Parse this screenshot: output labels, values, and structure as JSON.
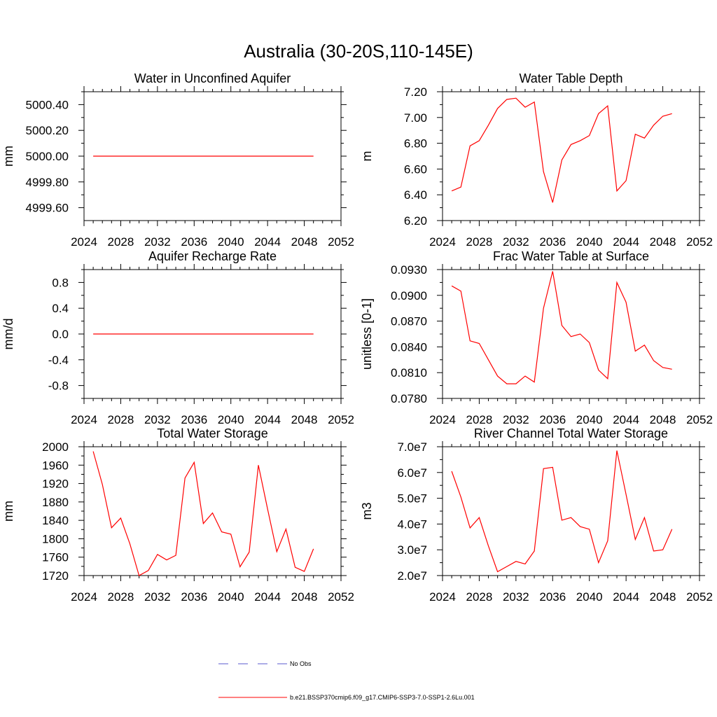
{
  "figure": {
    "title": "Australia (30-20S,110-145E)"
  },
  "legend": {
    "obs_label": "No Obs",
    "obs_color": "#5a5acf",
    "model_label": "b.e21.BSSP370cmip6.f09_g17.CMIP6-SSP3-7.0-SSP1-2.6Lu.001",
    "model_color": "#ff0000"
  },
  "chart_data": [
    {
      "type": "line",
      "title": "Water in Unconfined Aquifer",
      "ylabel": "mm",
      "xlim": [
        2024,
        2052
      ],
      "ylim": [
        4999.5,
        5000.5
      ],
      "xticks": [
        "2024",
        "2028",
        "2032",
        "2036",
        "2040",
        "2044",
        "2048",
        "2052"
      ],
      "yticks": [
        4999.6,
        4999.8,
        5000.0,
        5000.2,
        5000.4
      ],
      "ytick_labels": [
        "4999.60",
        "4999.80",
        "5000.00",
        "5000.20",
        "5000.40"
      ],
      "x": [
        2025,
        2026,
        2027,
        2028,
        2029,
        2030,
        2031,
        2032,
        2033,
        2034,
        2035,
        2036,
        2037,
        2038,
        2039,
        2040,
        2041,
        2042,
        2043,
        2044,
        2045,
        2046,
        2047,
        2048,
        2049
      ],
      "series": [
        {
          "values": [
            5000,
            5000,
            5000,
            5000,
            5000,
            5000,
            5000,
            5000,
            5000,
            5000,
            5000,
            5000,
            5000,
            5000,
            5000,
            5000,
            5000,
            5000,
            5000,
            5000,
            5000,
            5000,
            5000,
            5000,
            5000
          ],
          "color": "#ff0000"
        }
      ]
    },
    {
      "type": "line",
      "title": "Water Table Depth",
      "ylabel": "m",
      "xlim": [
        2024,
        2052
      ],
      "ylim": [
        6.2,
        7.2
      ],
      "xticks": [
        "2024",
        "2028",
        "2032",
        "2036",
        "2040",
        "2044",
        "2048",
        "2052"
      ],
      "yticks": [
        6.2,
        6.4,
        6.6,
        6.8,
        7.0,
        7.2
      ],
      "ytick_labels": [
        "6.20",
        "6.40",
        "6.60",
        "6.80",
        "7.00",
        "7.20"
      ],
      "x": [
        2025,
        2026,
        2027,
        2028,
        2029,
        2030,
        2031,
        2032,
        2033,
        2034,
        2035,
        2036,
        2037,
        2038,
        2039,
        2040,
        2041,
        2042,
        2043,
        2044,
        2045,
        2046,
        2047,
        2048,
        2049
      ],
      "series": [
        {
          "values": [
            6.43,
            6.46,
            6.78,
            6.82,
            6.94,
            7.07,
            7.14,
            7.15,
            7.08,
            7.12,
            6.58,
            6.34,
            6.67,
            6.79,
            6.82,
            6.86,
            7.03,
            7.09,
            6.43,
            6.51,
            6.87,
            6.84,
            6.94,
            7.01,
            7.03
          ],
          "color": "#ff0000"
        }
      ]
    },
    {
      "type": "line",
      "title": "Aquifer Recharge Rate",
      "ylabel": "mm/d",
      "xlim": [
        2024,
        2052
      ],
      "ylim": [
        -1.0,
        1.0
      ],
      "xticks": [
        "2024",
        "2028",
        "2032",
        "2036",
        "2040",
        "2044",
        "2048",
        "2052"
      ],
      "yticks": [
        -0.8,
        -0.4,
        0.0,
        0.4,
        0.8
      ],
      "ytick_labels": [
        "-0.8",
        "-0.4",
        "0.0",
        "0.4",
        "0.8"
      ],
      "x": [
        2025,
        2026,
        2027,
        2028,
        2029,
        2030,
        2031,
        2032,
        2033,
        2034,
        2035,
        2036,
        2037,
        2038,
        2039,
        2040,
        2041,
        2042,
        2043,
        2044,
        2045,
        2046,
        2047,
        2048,
        2049
      ],
      "series": [
        {
          "values": [
            0,
            0,
            0,
            0,
            0,
            0,
            0,
            0,
            0,
            0,
            0,
            0,
            0,
            0,
            0,
            0,
            0,
            0,
            0,
            0,
            0,
            0,
            0,
            0,
            0
          ],
          "color": "#ff0000"
        }
      ]
    },
    {
      "type": "line",
      "title": "Frac Water Table at Surface",
      "ylabel": "unitless [0-1]",
      "xlim": [
        2024,
        2052
      ],
      "ylim": [
        0.078,
        0.093
      ],
      "xticks": [
        "2024",
        "2028",
        "2032",
        "2036",
        "2040",
        "2044",
        "2048",
        "2052"
      ],
      "yticks": [
        0.078,
        0.081,
        0.084,
        0.087,
        0.09,
        0.093
      ],
      "ytick_labels": [
        "0.0780",
        "0.0810",
        "0.0840",
        "0.0870",
        "0.0900",
        "0.0930"
      ],
      "x": [
        2025,
        2026,
        2027,
        2028,
        2029,
        2030,
        2031,
        2032,
        2033,
        2034,
        2035,
        2036,
        2037,
        2038,
        2039,
        2040,
        2041,
        2042,
        2043,
        2044,
        2045,
        2046,
        2047,
        2048,
        2049
      ],
      "series": [
        {
          "values": [
            0.0911,
            0.0905,
            0.0847,
            0.0844,
            0.0825,
            0.0806,
            0.0797,
            0.0797,
            0.0806,
            0.0799,
            0.0885,
            0.0928,
            0.0865,
            0.0852,
            0.0855,
            0.0845,
            0.0813,
            0.0803,
            0.0915,
            0.0892,
            0.0835,
            0.0842,
            0.0824,
            0.0816,
            0.0814
          ],
          "color": "#ff0000"
        }
      ]
    },
    {
      "type": "line",
      "title": "Total Water Storage",
      "ylabel": "mm",
      "xlim": [
        2024,
        2052
      ],
      "ylim": [
        1720,
        2000
      ],
      "xticks": [
        "2024",
        "2028",
        "2032",
        "2036",
        "2040",
        "2044",
        "2048",
        "2052"
      ],
      "yticks": [
        1720,
        1760,
        1800,
        1840,
        1880,
        1920,
        1960,
        2000
      ],
      "ytick_labels": [
        "1720",
        "1760",
        "1800",
        "1840",
        "1880",
        "1920",
        "1960",
        "2000"
      ],
      "x": [
        2025,
        2026,
        2027,
        2028,
        2029,
        2030,
        2031,
        2032,
        2033,
        2034,
        2035,
        2036,
        2037,
        2038,
        2039,
        2040,
        2041,
        2042,
        2043,
        2044,
        2045,
        2046,
        2047,
        2048,
        2049
      ],
      "series": [
        {
          "values": [
            1990,
            1918,
            1824,
            1845,
            1789,
            1720,
            1731,
            1766,
            1754,
            1764,
            1932,
            1966,
            1833,
            1856,
            1815,
            1810,
            1739,
            1771,
            1960,
            1865,
            1772,
            1821,
            1738,
            1729,
            1778
          ],
          "color": "#ff0000"
        }
      ]
    },
    {
      "type": "line",
      "title": "River Channel Total Water Storage",
      "ylabel": "m3",
      "xlim": [
        2024,
        2052
      ],
      "ylim": [
        20000000,
        70000000
      ],
      "xticks": [
        "2024",
        "2028",
        "2032",
        "2036",
        "2040",
        "2044",
        "2048",
        "2052"
      ],
      "yticks": [
        20000000,
        30000000,
        40000000,
        50000000,
        60000000,
        70000000
      ],
      "ytick_labels": [
        "2.0e7",
        "3.0e7",
        "4.0e7",
        "5.0e7",
        "6.0e7",
        "7.0e7"
      ],
      "x": [
        2025,
        2026,
        2027,
        2028,
        2029,
        2030,
        2031,
        2032,
        2033,
        2034,
        2035,
        2036,
        2037,
        2038,
        2039,
        2040,
        2041,
        2042,
        2043,
        2044,
        2045,
        2046,
        2047,
        2048,
        2049
      ],
      "series": [
        {
          "values": [
            60500000,
            50500000,
            38500000,
            42500000,
            31500000,
            21500000,
            23500000,
            25500000,
            24500000,
            29500000,
            61500000,
            62000000,
            41500000,
            42500000,
            39000000,
            38000000,
            25000000,
            33500000,
            68500000,
            51500000,
            34000000,
            42500000,
            29500000,
            30000000,
            38000000
          ],
          "color": "#ff0000"
        }
      ]
    }
  ]
}
